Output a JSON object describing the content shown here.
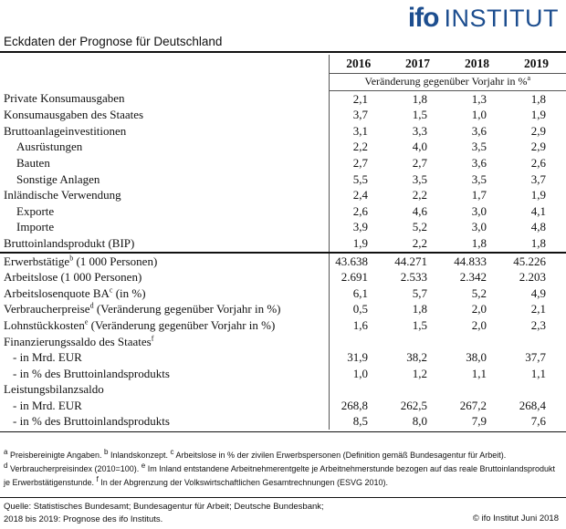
{
  "logo": {
    "ifo": "ifo",
    "institut": "INSTITUT"
  },
  "title": "Eckdaten der Prognose für Deutschland",
  "years": [
    "2016",
    "2017",
    "2018",
    "2019"
  ],
  "subheader": "Veränderung gegenüber Vorjahr in %",
  "subheader_sup": "a",
  "block1": [
    {
      "label": "Private Konsumausgaben",
      "indent": 0,
      "values": [
        "2,1",
        "1,8",
        "1,3",
        "1,8"
      ]
    },
    {
      "label": "Konsumausgaben des Staates",
      "indent": 0,
      "values": [
        "3,7",
        "1,5",
        "1,0",
        "1,9"
      ]
    },
    {
      "label": "Bruttoanlageinvestitionen",
      "indent": 0,
      "values": [
        "3,1",
        "3,3",
        "3,6",
        "2,9"
      ]
    },
    {
      "label": "Ausrüstungen",
      "indent": 1,
      "values": [
        "2,2",
        "4,0",
        "3,5",
        "2,9"
      ]
    },
    {
      "label": "Bauten",
      "indent": 1,
      "values": [
        "2,7",
        "2,7",
        "3,6",
        "2,6"
      ]
    },
    {
      "label": "Sonstige Anlagen",
      "indent": 1,
      "values": [
        "5,5",
        "3,5",
        "3,5",
        "3,7"
      ]
    },
    {
      "label": "Inländische Verwendung",
      "indent": 0,
      "values": [
        "2,4",
        "2,2",
        "1,7",
        "1,9"
      ]
    },
    {
      "label": "Exporte",
      "indent": 1,
      "values": [
        "2,6",
        "4,6",
        "3,0",
        "4,1"
      ]
    },
    {
      "label": "Importe",
      "indent": 1,
      "values": [
        "3,9",
        "5,2",
        "3,0",
        "4,8"
      ]
    },
    {
      "label": "Bruttoinlandsprodukt (BIP)",
      "indent": 0,
      "values": [
        "1,9",
        "2,2",
        "1,8",
        "1,8"
      ]
    }
  ],
  "block2": [
    {
      "label": "Erwerbstätige",
      "sup": "b",
      "suffix": " (1 000 Personen)",
      "values": [
        "43.638",
        "44.271",
        "44.833",
        "45.226"
      ]
    },
    {
      "label": "Arbeitslose (1 000 Personen)",
      "sup": "",
      "suffix": "",
      "values": [
        "2.691",
        "2.533",
        "2.342",
        "2.203"
      ]
    },
    {
      "label": "Arbeitslosenquote BA",
      "sup": "c",
      "suffix": " (in %)",
      "values": [
        "6,1",
        "5,7",
        "5,2",
        "4,9"
      ]
    },
    {
      "label": "Verbraucherpreise",
      "sup": "d",
      "suffix": " (Veränderung gegenüber Vorjahr in %)",
      "values": [
        "0,5",
        "1,8",
        "2,0",
        "2,1"
      ]
    },
    {
      "label": "Lohnstückkosten",
      "sup": "e",
      "suffix": " (Veränderung gegenüber Vorjahr in %)",
      "values": [
        "1,6",
        "1,5",
        "2,0",
        "2,3"
      ]
    },
    {
      "label": "Finanzierungssaldo des Staates",
      "sup": "f",
      "suffix": "",
      "values": [
        "",
        "",
        "",
        ""
      ]
    },
    {
      "label": "- in Mrd. EUR",
      "sup": "",
      "suffix": "",
      "indent": 1,
      "values": [
        "31,9",
        "38,2",
        "38,0",
        "37,7"
      ]
    },
    {
      "label": "- in % des Bruttoinlandsprodukts",
      "sup": "",
      "suffix": "",
      "indent": 1,
      "values": [
        "1,0",
        "1,2",
        "1,1",
        "1,1"
      ]
    },
    {
      "label": "Leistungsbilanzsaldo",
      "sup": "",
      "suffix": "",
      "values": [
        "",
        "",
        "",
        ""
      ]
    },
    {
      "label": "- in Mrd. EUR",
      "sup": "",
      "suffix": "",
      "indent": 1,
      "values": [
        "268,8",
        "262,5",
        "267,2",
        "268,4"
      ]
    },
    {
      "label": "- in % des Bruttoinlandsprodukts",
      "sup": "",
      "suffix": "",
      "indent": 1,
      "values": [
        "8,5",
        "8,0",
        "7,9",
        "7,6"
      ]
    }
  ],
  "notes": [
    {
      "sup": "a",
      "text": " Preisbereinigte Angaben. "
    },
    {
      "sup": "b",
      "text": " Inlandskonzept. "
    },
    {
      "sup": "c",
      "text": " Arbeitslose in % der zivilen Erwerbspersonen (Definition gemäß Bundesagentur für Arbeit)."
    },
    {
      "sup": "d",
      "text": " Verbraucherpreisindex (2010=100). "
    },
    {
      "sup": "e",
      "text": " Im Inland entstandene Arbeitnehmerentgelte je Arbeitnehmerstunde bezogen auf das reale Bruttoinlandsprodukt je Erwerbstätigenstunde. "
    },
    {
      "sup": "f",
      "text": " In der Abgrenzung der Volkswirtschaftlichen Gesamtrechnungen (ESVG 2010)."
    }
  ],
  "source_line1": "Quelle: Statistisches Bundesamt; Bundesagentur für Arbeit; Deutsche Bundesbank;",
  "source_line2": "2018 bis 2019: Prognose des ifo Instituts.",
  "copyright": "© ifo Institut Juni 2018"
}
